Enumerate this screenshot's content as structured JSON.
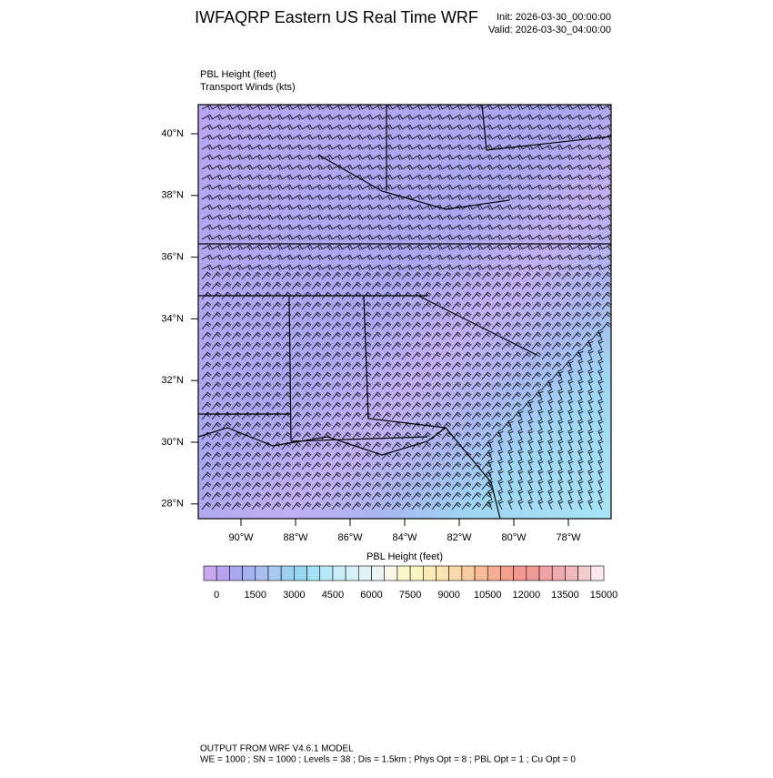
{
  "header": {
    "title": "IWFAQRP Eastern US Real Time WRF",
    "init": "Init: 2026-03-30_00:00:00",
    "valid": "Valid: 2026-03-30_04:00:00"
  },
  "fields": {
    "line1": "PBL Height   (feet)",
    "line2": "Transport Winds   (kts)"
  },
  "map": {
    "lat_labels": [
      "40°N",
      "38°N",
      "36°N",
      "34°N",
      "32°N",
      "30°N",
      "28°N"
    ],
    "lon_labels": [
      "90°W",
      "88°W",
      "86°W",
      "84°W",
      "82°W",
      "80°W",
      "78°W"
    ]
  },
  "colorbar": {
    "title": "PBL Height  (feet)",
    "ticks": [
      0,
      1500,
      3000,
      4500,
      6000,
      7500,
      9000,
      10500,
      12000,
      13500,
      15000
    ],
    "colors": [
      "#c9a8f0",
      "#b6a2f0",
      "#a9a6f2",
      "#a6b1f0",
      "#aabfef",
      "#a8c8f0",
      "#9ccff0",
      "#98d8f2",
      "#a6e0f5",
      "#b8e8f7",
      "#c9eef8",
      "#d6f0f8",
      "#e2f2f7",
      "#eef5f6",
      "#f8f8e8",
      "#fbf8cc",
      "#fbf3c0",
      "#fbecb6",
      "#fae4b0",
      "#f9d8aa",
      "#f8cca0",
      "#f7bd98",
      "#f6ae92",
      "#f5a08e",
      "#f4978e",
      "#f29a98",
      "#f1a2a4",
      "#f0aab0",
      "#f0b8bc",
      "#f4ccd0",
      "#fbe8ec"
    ]
  },
  "footer": {
    "line1": "OUTPUT FROM WRF V4.6.1 MODEL",
    "line2": "WE = 1000 ; SN = 1000 ; Levels = 38 ; Dis = 1.5km ; Phys Opt = 8 ; PBL Opt = 1 ; Cu Opt = 0"
  }
}
